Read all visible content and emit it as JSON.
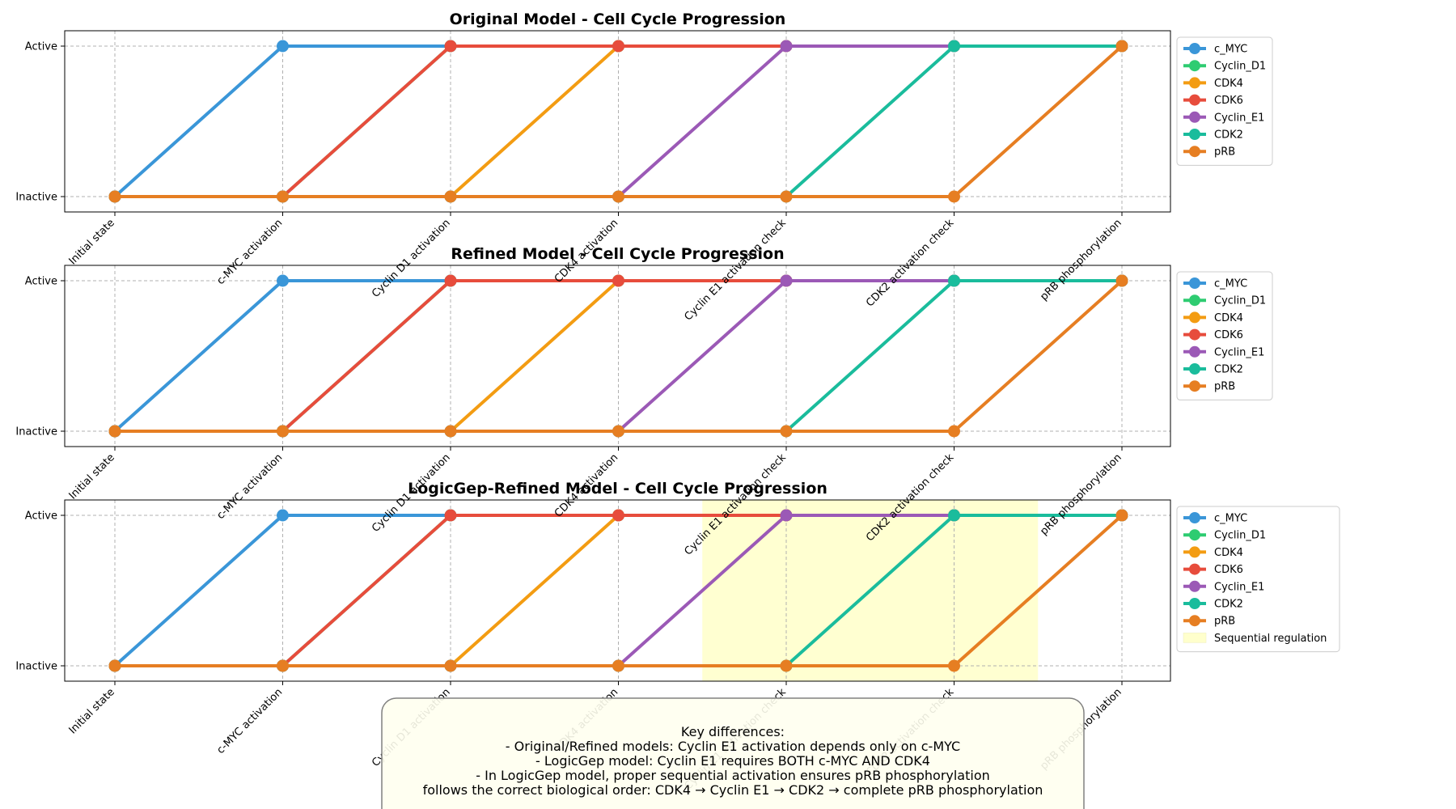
{
  "chart_data": [
    {
      "type": "line",
      "title": "Original Model - Cell Cycle Progression",
      "categories": [
        "Initial state",
        "c-MYC activation",
        "Cyclin D1 activation",
        "CDK4 activation",
        "Cyclin E1 activation check",
        "CDK2 activation check",
        "pRB phosphorylation"
      ],
      "yticks": [
        "Inactive",
        "Active"
      ],
      "ylim": [
        0,
        1
      ],
      "grid": true,
      "legend_position": "outside-right",
      "series": [
        {
          "name": "c_MYC",
          "color": "#3a96d8",
          "values": [
            0,
            1,
            1,
            1,
            1,
            1,
            1
          ]
        },
        {
          "name": "Cyclin_D1",
          "color": "#2ecc71",
          "values": [
            0,
            0,
            1,
            1,
            1,
            1,
            1
          ]
        },
        {
          "name": "CDK4",
          "color": "#f39c12",
          "values": [
            0,
            0,
            0,
            1,
            1,
            1,
            1
          ]
        },
        {
          "name": "CDK6",
          "color": "#e74c3c",
          "values": [
            0,
            0,
            1,
            1,
            1,
            1,
            1
          ]
        },
        {
          "name": "Cyclin_E1",
          "color": "#9b59b6",
          "values": [
            0,
            0,
            0,
            0,
            1,
            1,
            1
          ]
        },
        {
          "name": "CDK2",
          "color": "#1abc9c",
          "values": [
            0,
            0,
            0,
            0,
            0,
            1,
            1
          ]
        },
        {
          "name": "pRB",
          "color": "#e67e22",
          "values": [
            0,
            0,
            0,
            0,
            0,
            0,
            1
          ]
        }
      ]
    },
    {
      "type": "line",
      "title": "Refined Model - Cell Cycle Progression",
      "categories": [
        "Initial state",
        "c-MYC activation",
        "Cyclin D1 activation",
        "CDK4 activation",
        "Cyclin E1 activation check",
        "CDK2 activation check",
        "pRB phosphorylation"
      ],
      "yticks": [
        "Inactive",
        "Active"
      ],
      "ylim": [
        0,
        1
      ],
      "grid": true,
      "legend_position": "outside-right",
      "series": [
        {
          "name": "c_MYC",
          "color": "#3a96d8",
          "values": [
            0,
            1,
            1,
            1,
            1,
            1,
            1
          ]
        },
        {
          "name": "Cyclin_D1",
          "color": "#2ecc71",
          "values": [
            0,
            0,
            1,
            1,
            1,
            1,
            1
          ]
        },
        {
          "name": "CDK4",
          "color": "#f39c12",
          "values": [
            0,
            0,
            0,
            1,
            1,
            1,
            1
          ]
        },
        {
          "name": "CDK6",
          "color": "#e74c3c",
          "values": [
            0,
            0,
            1,
            1,
            1,
            1,
            1
          ]
        },
        {
          "name": "Cyclin_E1",
          "color": "#9b59b6",
          "values": [
            0,
            0,
            0,
            0,
            1,
            1,
            1
          ]
        },
        {
          "name": "CDK2",
          "color": "#1abc9c",
          "values": [
            0,
            0,
            0,
            0,
            0,
            1,
            1
          ]
        },
        {
          "name": "pRB",
          "color": "#e67e22",
          "values": [
            0,
            0,
            0,
            0,
            0,
            0,
            1
          ]
        }
      ]
    },
    {
      "type": "line",
      "title": "LogicGep-Refined Model - Cell Cycle Progression",
      "categories": [
        "Initial state",
        "c-MYC activation",
        "Cyclin D1 activation",
        "CDK4 activation",
        "Cyclin E1 activation check",
        "CDK2 activation check",
        "pRB phosphorylation"
      ],
      "yticks": [
        "Inactive",
        "Active"
      ],
      "ylim": [
        0,
        1
      ],
      "grid": true,
      "legend_position": "outside-right",
      "highlight": {
        "label": "Sequential regulation",
        "color": "#ffffcc",
        "x_range": [
          3.5,
          5.5
        ]
      },
      "series": [
        {
          "name": "c_MYC",
          "color": "#3a96d8",
          "values": [
            0,
            1,
            1,
            1,
            1,
            1,
            1
          ]
        },
        {
          "name": "Cyclin_D1",
          "color": "#2ecc71",
          "values": [
            0,
            0,
            1,
            1,
            1,
            1,
            1
          ]
        },
        {
          "name": "CDK4",
          "color": "#f39c12",
          "values": [
            0,
            0,
            0,
            1,
            1,
            1,
            1
          ]
        },
        {
          "name": "CDK6",
          "color": "#e74c3c",
          "values": [
            0,
            0,
            1,
            1,
            1,
            1,
            1
          ]
        },
        {
          "name": "Cyclin_E1",
          "color": "#9b59b6",
          "values": [
            0,
            0,
            0,
            0,
            1,
            1,
            1
          ]
        },
        {
          "name": "CDK2",
          "color": "#1abc9c",
          "values": [
            0,
            0,
            0,
            0,
            0,
            1,
            1
          ]
        },
        {
          "name": "pRB",
          "color": "#e67e22",
          "values": [
            0,
            0,
            0,
            0,
            0,
            0,
            1
          ]
        }
      ]
    }
  ],
  "annotation": {
    "lines": [
      "Key differences:",
      "- Original/Refined models: Cyclin E1 activation depends only on c-MYC",
      "- LogicGep model: Cyclin E1 requires BOTH c-MYC AND CDK4",
      "- In LogicGep model, proper sequential activation ensures pRB phosphorylation",
      "follows the correct biological order: CDK4 → Cyclin E1 → CDK2 → complete pRB phosphorylation"
    ],
    "background": "#fffff0",
    "border": "#808080"
  }
}
